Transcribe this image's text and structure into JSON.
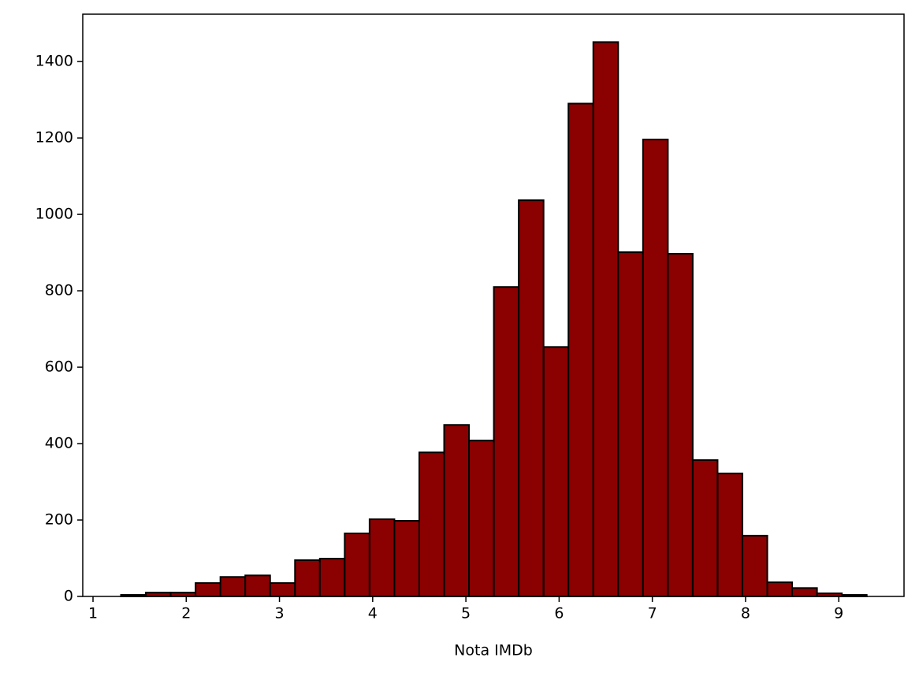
{
  "chart_data": {
    "type": "histogram",
    "x_label": "Nota IMDb",
    "bins": [
      1.3,
      1.5667,
      1.8333,
      2.1,
      2.3667,
      2.6333,
      2.9,
      3.1667,
      3.4333,
      3.7,
      3.9667,
      4.2333,
      4.5,
      4.7667,
      5.0333,
      5.3,
      5.5667,
      5.8333,
      6.1,
      6.3667,
      6.6333,
      6.9,
      7.1667,
      7.4333,
      7.7,
      7.9667,
      8.2333,
      8.5,
      8.7667,
      9.0333,
      9.3
    ],
    "values": [
      4,
      10,
      10,
      35,
      51,
      55,
      35,
      95,
      99,
      165,
      202,
      198,
      377,
      449,
      408,
      810,
      1037,
      653,
      1290,
      1451,
      901,
      1196,
      897,
      357,
      322,
      159,
      37,
      22,
      8,
      4
    ],
    "color": "#8b0000",
    "edgecolor": "#000000",
    "xlim": [
      0.89,
      9.7
    ],
    "ylim": [
      0,
      1524
    ],
    "xticks": [
      1,
      2,
      3,
      4,
      5,
      6,
      7,
      8,
      9
    ],
    "yticks": [
      0,
      200,
      400,
      600,
      800,
      1000,
      1200,
      1400
    ]
  }
}
